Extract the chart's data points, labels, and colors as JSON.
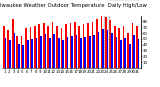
{
  "title": "Milwaukee Weather Outdoor Temperature  Daily High/Low",
  "high_color": "#ff0000",
  "low_color": "#0000ff",
  "background_color": "#ffffff",
  "ylim": [
    0,
    90
  ],
  "yticks": [
    10,
    20,
    30,
    40,
    50,
    60,
    70,
    80
  ],
  "days": [
    1,
    2,
    3,
    4,
    5,
    6,
    7,
    8,
    9,
    10,
    11,
    12,
    13,
    14,
    15,
    16,
    17,
    18,
    19,
    20,
    21,
    22,
    23,
    24,
    25,
    26,
    27,
    28,
    29,
    30,
    31
  ],
  "highs": [
    72,
    65,
    85,
    55,
    55,
    68,
    70,
    72,
    75,
    78,
    72,
    79,
    73,
    68,
    75,
    77,
    79,
    72,
    75,
    77,
    79,
    85,
    90,
    88,
    82,
    73,
    68,
    72,
    60,
    78,
    72
  ],
  "lows": [
    52,
    48,
    60,
    42,
    40,
    48,
    50,
    52,
    55,
    58,
    52,
    58,
    52,
    48,
    53,
    55,
    57,
    52,
    53,
    55,
    57,
    62,
    67,
    65,
    60,
    53,
    48,
    51,
    42,
    56,
    50
  ],
  "highlight_day": 24,
  "bar_width": 0.38,
  "title_fontsize": 3.8,
  "tick_fontsize": 2.8,
  "legend_fontsize": 3.0
}
